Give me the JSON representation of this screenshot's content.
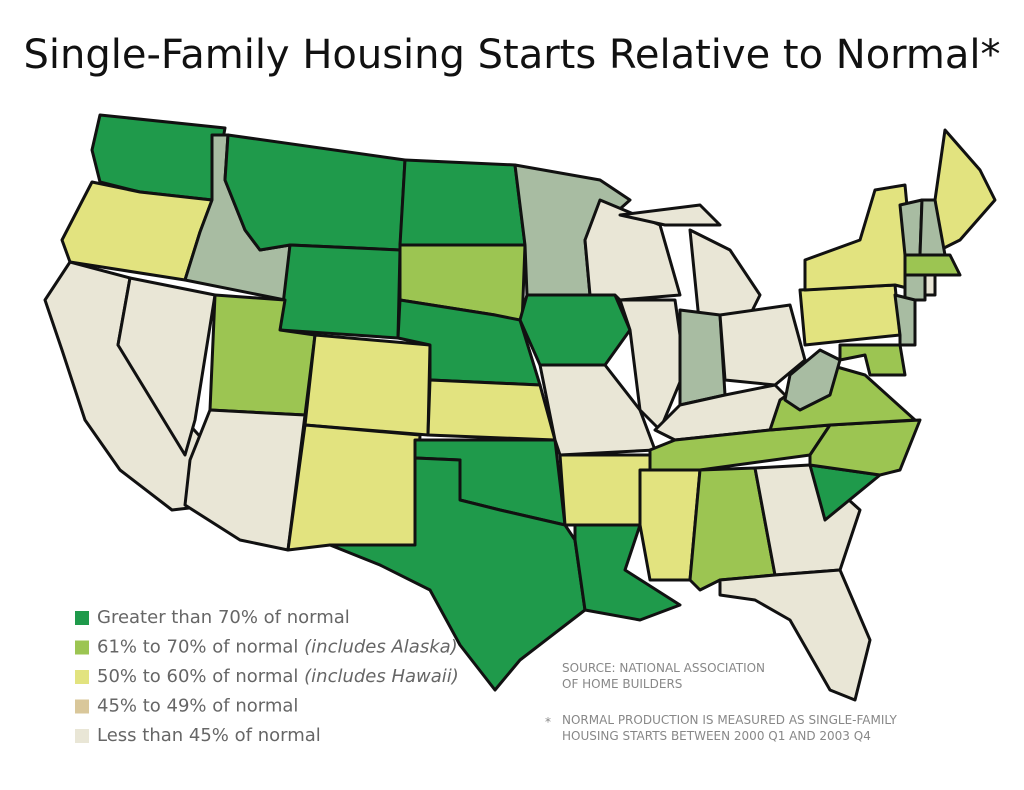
{
  "title": "Single-Family Housing Starts Relative to Normal*",
  "legend": [
    {
      "label": "Greater than 70% of normal",
      "color": "#1f9a4b"
    },
    {
      "label": "61% to 70% of normal",
      "note": "(includes Alaska)",
      "color": "#9cc552"
    },
    {
      "label": "50% to 60% of normal",
      "note": "(includes Hawaii)",
      "color": "#e2e37f"
    },
    {
      "label": "45% to 49% of normal",
      "color": "#d9c79a"
    },
    {
      "label": "Less than 45% of normal",
      "color": "#e9e6d6"
    }
  ],
  "source": [
    "SOURCE: NATIONAL ASSOCIATION",
    "OF HOME BUILDERS"
  ],
  "footnote": {
    "marker": "*",
    "lines": [
      "NORMAL PRODUCTION IS MEASURED AS SINGLE-FAMILY",
      "HOUSING STARTS BETWEEN 2000 Q1 AND 2003 Q4"
    ]
  }
}
